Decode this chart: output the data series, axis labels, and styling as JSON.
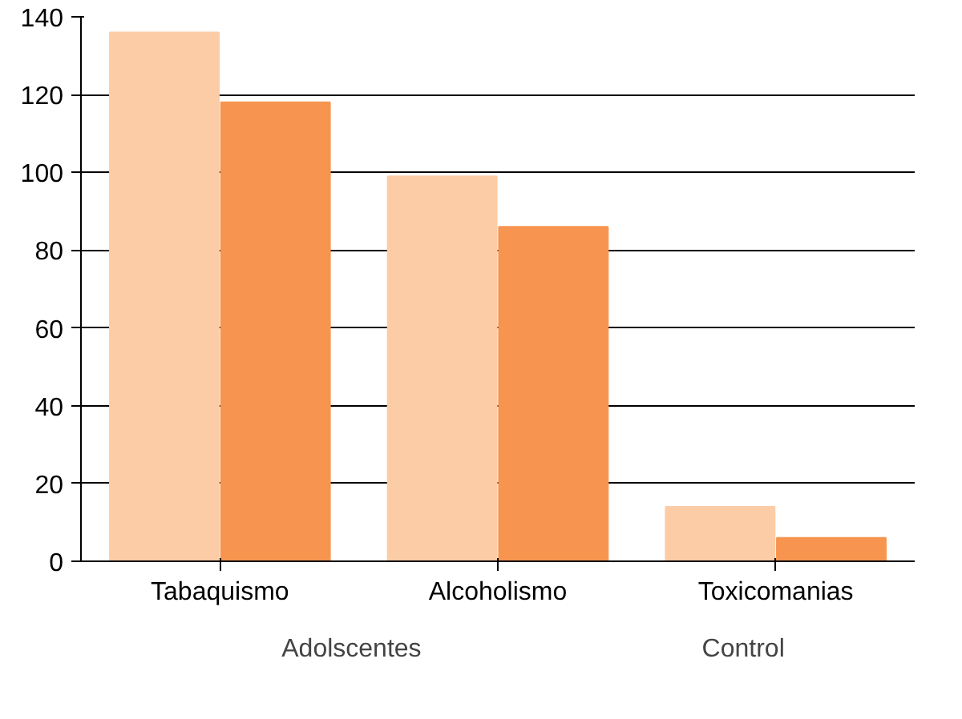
{
  "chart_data": {
    "type": "bar",
    "categories": [
      "Tabaquismo",
      "Alcoholismo",
      "Toxicomanias"
    ],
    "series": [
      {
        "name": "Adolscentes",
        "color": "#fccca6",
        "values": [
          136,
          99,
          14
        ]
      },
      {
        "name": "Control",
        "color": "#f79550",
        "values": [
          118,
          86,
          6
        ]
      }
    ],
    "ylim": [
      0,
      140
    ],
    "yticks": [
      0,
      20,
      40,
      60,
      80,
      100,
      120,
      140
    ],
    "grid": "y",
    "legend": "bottom"
  }
}
